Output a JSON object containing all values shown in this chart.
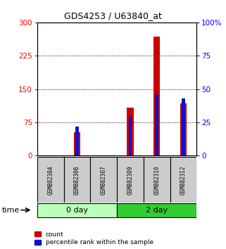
{
  "title": "GDS4253 / U63840_at",
  "samples": [
    "GSM882304",
    "GSM882306",
    "GSM882307",
    "GSM882309",
    "GSM882310",
    "GSM882312"
  ],
  "count_values": [
    0,
    52,
    0,
    108,
    268,
    118
  ],
  "percentile_values": [
    0,
    22,
    0,
    29,
    46,
    43
  ],
  "left_ylim": [
    0,
    300
  ],
  "right_ylim": [
    0,
    100
  ],
  "left_yticks": [
    0,
    75,
    150,
    225,
    300
  ],
  "right_yticks": [
    0,
    25,
    50,
    75,
    100
  ],
  "right_yticklabels": [
    "0",
    "25",
    "50",
    "75",
    "100%"
  ],
  "bar_color_red": "#cc0000",
  "bar_color_blue": "#1010cc",
  "group_labels": [
    "0 day",
    "2 day"
  ],
  "group_ranges": [
    [
      0,
      3
    ],
    [
      3,
      6
    ]
  ],
  "group_color_light": "#bbffbb",
  "group_color_dark": "#33cc33",
  "time_label": "time",
  "legend_red": "count",
  "legend_blue": "percentile rank within the sample",
  "background_color": "#ffffff",
  "plot_bg": "#ffffff",
  "sample_box_color": "#cccccc",
  "red_bar_width": 0.25,
  "blue_bar_width": 0.12
}
